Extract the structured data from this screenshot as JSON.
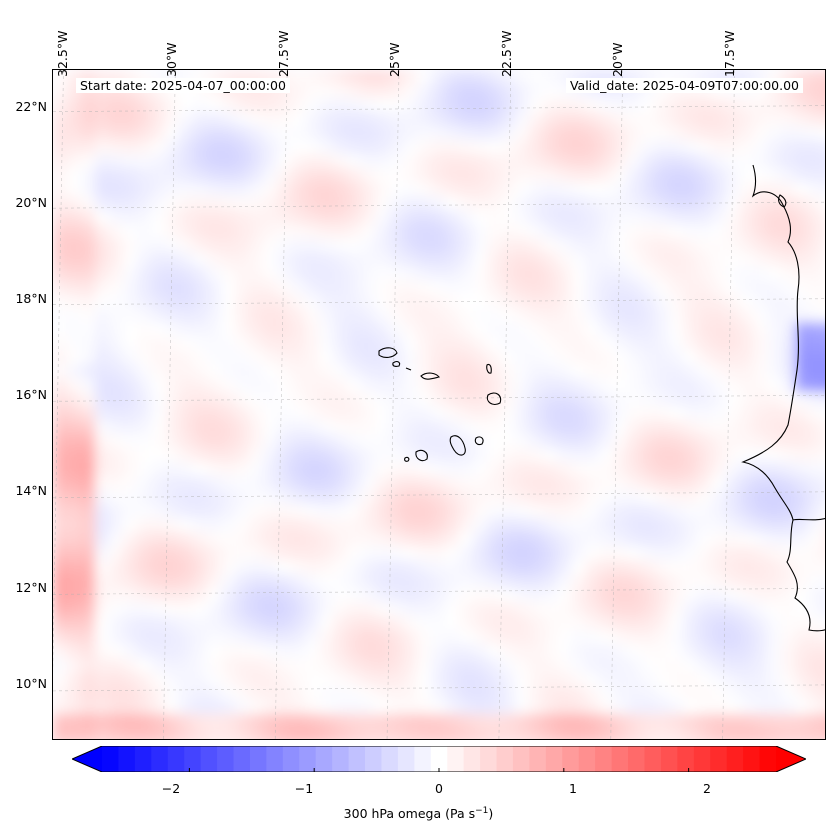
{
  "map": {
    "variable": "300 hPa omega",
    "units_text": "(Pa s",
    "units_exp": "−1",
    "units_close": ")",
    "start_date_label": "Start date: 2025-04-07_00:00:00",
    "valid_date_label": "Valid_date: 2025-04-09T07:00:00.00",
    "lon_labels": [
      "32.5°W",
      "30°W",
      "27.5°W",
      "25°W",
      "22.5°W",
      "20°W",
      "17.5°W"
    ],
    "lat_labels": [
      "22°N",
      "20°N",
      "18°N",
      "16°N",
      "14°N",
      "12°N",
      "10°N"
    ],
    "lon_values": [
      -32.5,
      -30,
      -27.5,
      -25,
      -22.5,
      -20,
      -17.5
    ],
    "lat_values": [
      22,
      20,
      18,
      16,
      14,
      12,
      10
    ],
    "lon_range": [
      -32.6,
      -15.3
    ],
    "lat_range": [
      8.9,
      22.8
    ],
    "colors": {
      "negative": "#0000ff",
      "neutral": "#ffffff",
      "positive": "#ff0000",
      "coast": "#000000",
      "grid": "#b0b0b0"
    }
  },
  "colorbar": {
    "range": [
      -2.7,
      2.7
    ],
    "tick_values": [
      -2,
      -1,
      0,
      1,
      2
    ],
    "tick_labels": [
      "−2",
      "−1",
      "0",
      "1",
      "2"
    ],
    "levels": 41
  }
}
